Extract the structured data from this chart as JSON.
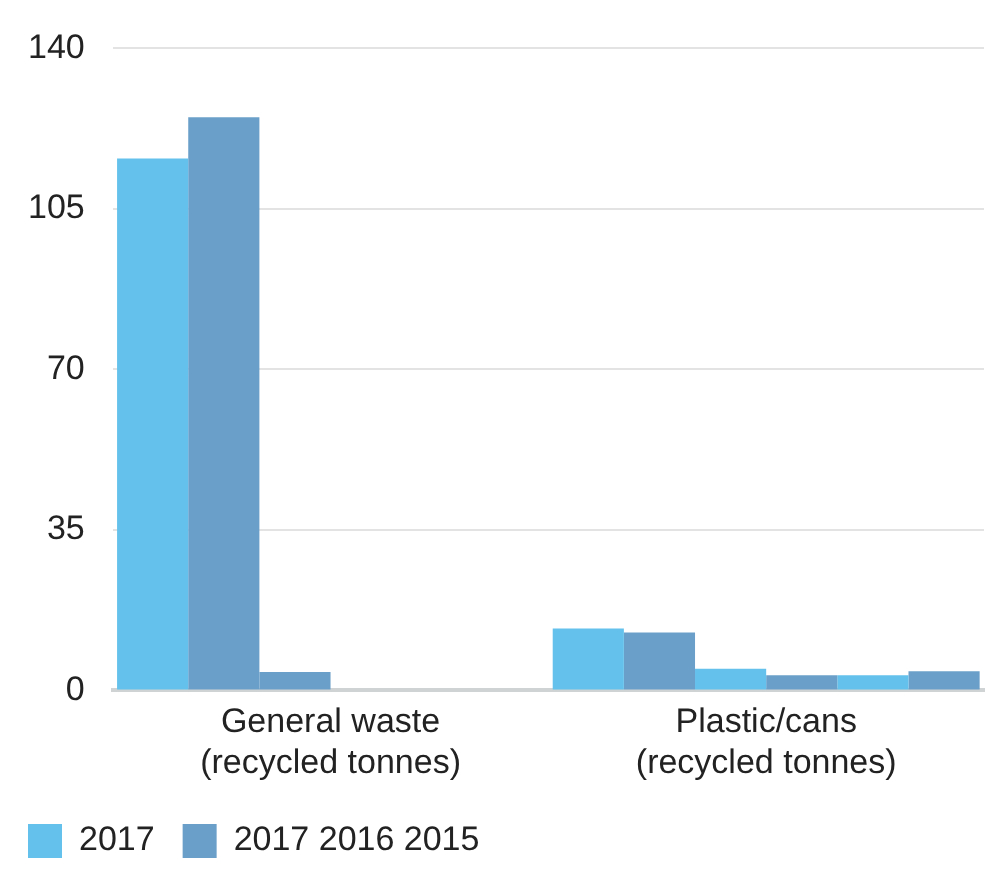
{
  "chart_data": {
    "type": "bar",
    "categories": [
      "General waste\n(recycled tonnes)",
      "Plastic/cans\n(recycled tonnes)"
    ],
    "series": [
      {
        "name": "2017",
        "color": "#63c1ec",
        "values": [
          116,
          13.5
        ]
      },
      {
        "name": "2017 2016 2015",
        "color": "#6a9fc9",
        "values": [
          125,
          12.6
        ]
      },
      {
        "colors": [
          "#6a9fc9",
          "#63c1ec"
        ],
        "values": [
          4,
          4.7
        ]
      },
      {
        "color": "#6a9fc9",
        "values": [
          null,
          3.3
        ]
      },
      {
        "color": "#63c1ec",
        "values": [
          null,
          3.3
        ]
      },
      {
        "color": "#6a9fc9",
        "values": [
          null,
          4.2
        ]
      }
    ],
    "ylim": [
      0,
      140
    ],
    "yticks": [
      0,
      35,
      70,
      105,
      140
    ],
    "grid": "y",
    "legend": "bottom"
  }
}
